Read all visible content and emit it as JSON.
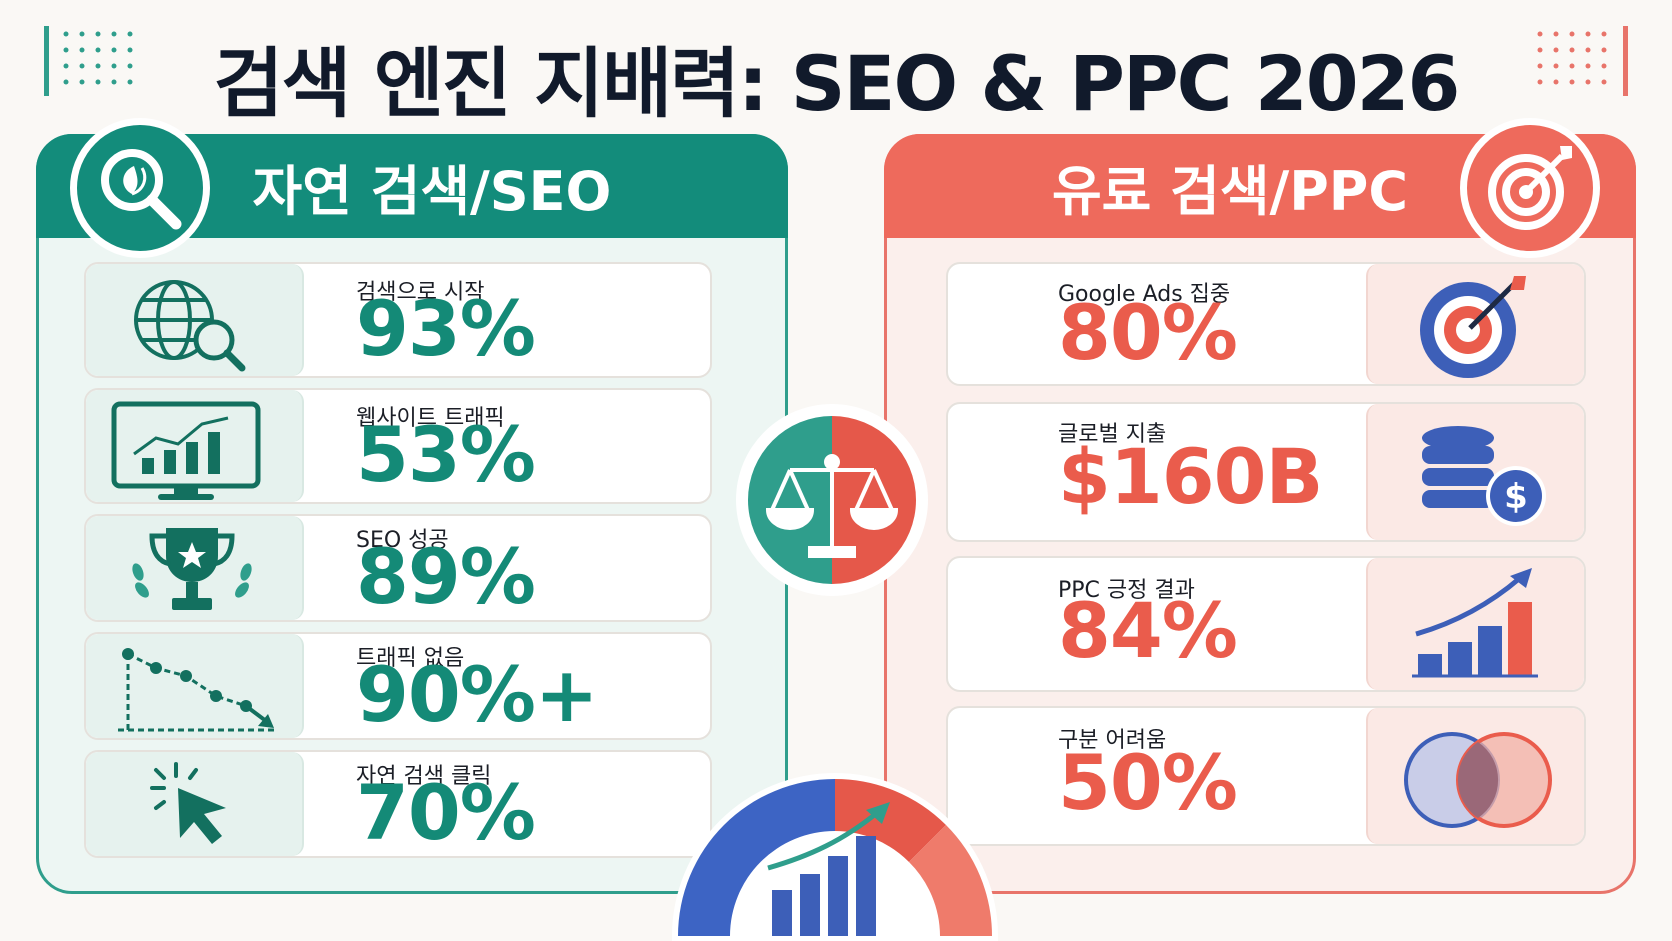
{
  "title": "검색 엔진 지배력: SEO & PPC 2026",
  "seo": {
    "heading": "자연 검색/SEO",
    "stats": [
      {
        "label": "검색으로 시작",
        "value": "93%",
        "icon": "globe-search-icon"
      },
      {
        "label": "웹사이트 트래픽",
        "value": "53%",
        "icon": "monitor-chart-icon"
      },
      {
        "label": "SEO 성공",
        "value": "89%",
        "icon": "trophy-icon"
      },
      {
        "label": "트래픽 없음",
        "value": "90%+",
        "icon": "declining-line-icon"
      },
      {
        "label": "자연 검색 클릭",
        "value": "70%",
        "icon": "cursor-click-icon"
      }
    ]
  },
  "ppc": {
    "heading": "유료 검색/PPC",
    "stats": [
      {
        "label": "Google Ads 집중",
        "value": "80%",
        "icon": "target-icon"
      },
      {
        "label": "글로벌 지출",
        "value": "$160B",
        "icon": "coins-dollar-icon"
      },
      {
        "label": "PPC 긍정 결과",
        "value": "84%",
        "icon": "bar-growth-icon"
      },
      {
        "label": "구분 어려움",
        "value": "50%",
        "icon": "venn-circles-icon"
      }
    ]
  },
  "colors": {
    "seo": "#138c7b",
    "ppc": "#ee6a5c",
    "blue": "#3d5fb8"
  }
}
